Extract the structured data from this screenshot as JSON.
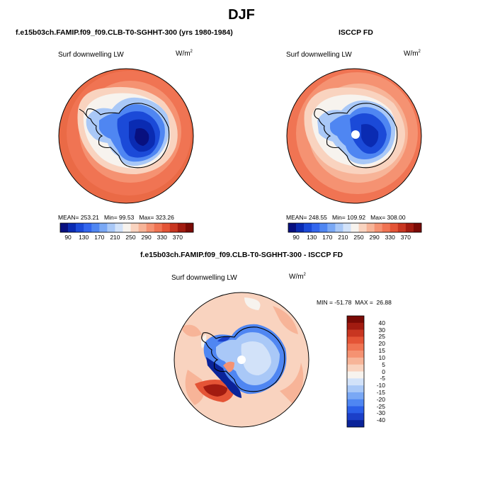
{
  "title": "DJF",
  "panels": [
    {
      "name": "f.e15b03ch.FAMIP.f09_f09.CLB-T0-SGHHT-300 (yrs 1980-1984)",
      "variable": "Surf downwelling LW",
      "units_base": "W/m",
      "units_exp": "2",
      "stats": {
        "mean_label": "MEAN=",
        "mean": "253.21",
        "min_label": "Min=",
        "min": "99.53",
        "max_label": "Max=",
        "max": "323.26"
      }
    },
    {
      "name": "ISCCP FD",
      "variable": "Surf downwelling LW",
      "units_base": "W/m",
      "units_exp": "2",
      "stats": {
        "mean_label": "MEAN=",
        "mean": "248.55",
        "min_label": "Min=",
        "min": "109.92",
        "max_label": "Max=",
        "max": "308.00"
      }
    },
    {
      "name": "f.e15b03ch.FAMIP.f09_f09.CLB-T0-SGHHT-300 - ISCCP FD",
      "variable": "Surf downwelling LW",
      "units_base": "W/m",
      "units_exp": "2",
      "minmax_text": "MIN = -51.78  MAX =  26.88"
    }
  ],
  "colorbar_abs": {
    "labels": [
      "90",
      "130",
      "170",
      "210",
      "250",
      "290",
      "330",
      "370"
    ],
    "colors": [
      "#08107f",
      "#0a2bb2",
      "#1b4ad8",
      "#3366ee",
      "#4f86f2",
      "#7aa8f5",
      "#a9c8f7",
      "#d2e2f9",
      "#f7f3ee",
      "#f9d3bf",
      "#f7b498",
      "#f59272",
      "#f07453",
      "#e45436",
      "#c83621",
      "#a21b10",
      "#7a0a05"
    ]
  },
  "colorbar_diff": {
    "labels": [
      "40",
      "30",
      "25",
      "20",
      "15",
      "10",
      "5",
      "0",
      "-5",
      "-10",
      "-15",
      "-20",
      "-25",
      "-30",
      "-40"
    ],
    "colors": [
      "#7a0a05",
      "#a21b10",
      "#c83621",
      "#e45436",
      "#f07453",
      "#f59272",
      "#f7b498",
      "#f9d3bf",
      "#f7f3ee",
      "#d2e2f9",
      "#a9c8f7",
      "#7aa8f5",
      "#4f86f2",
      "#2b5fe8",
      "#1b3fc8",
      "#0a2399"
    ]
  }
}
